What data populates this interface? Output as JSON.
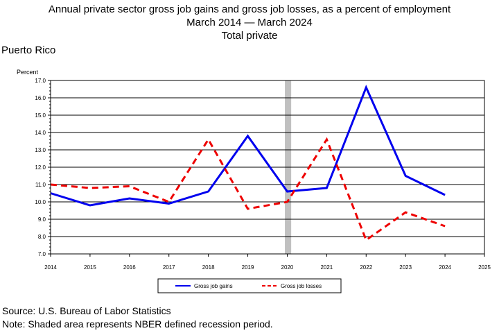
{
  "title": {
    "line1": "Annual private sector gross job gains and gross job losses, as a percent of employment",
    "line2": "March 2014 — March 2024",
    "line3": "Total private"
  },
  "region": "Puerto Rico",
  "footer": {
    "source": "Source: U.S. Bureau of Labor Statistics",
    "note": "Note: Shaded area represents NBER defined recession period."
  },
  "chart_data": {
    "type": "line",
    "ylabel": "Percent",
    "xlabel": "",
    "xlim": [
      2014,
      2025
    ],
    "ylim": [
      7.0,
      17.0
    ],
    "x_ticks": [
      "2014",
      "2015",
      "2016",
      "2017",
      "2018",
      "2019",
      "2020",
      "2021",
      "2022",
      "2023",
      "2024",
      "2025"
    ],
    "y_ticks": [
      "7.0",
      "8.0",
      "9.0",
      "10.0",
      "11.0",
      "12.0",
      "13.0",
      "14.0",
      "15.0",
      "16.0",
      "17.0"
    ],
    "grid": true,
    "legend_position": "bottom",
    "recession": {
      "start": 2019.94,
      "end": 2020.1,
      "color": "#c0c0c0"
    },
    "series": [
      {
        "name": "Gross job gains",
        "color": "#0000ee",
        "style": "solid",
        "x": [
          2014,
          2015,
          2016,
          2017,
          2018,
          2019,
          2020,
          2021,
          2022,
          2023,
          2024
        ],
        "values": [
          10.5,
          9.8,
          10.2,
          9.9,
          10.6,
          13.8,
          10.6,
          10.8,
          16.6,
          11.5,
          10.4
        ]
      },
      {
        "name": "Gross job losses",
        "color": "#ee0000",
        "style": "dashed",
        "x": [
          2014,
          2015,
          2016,
          2017,
          2018,
          2019,
          2020,
          2021,
          2022,
          2023,
          2024
        ],
        "values": [
          11.0,
          10.8,
          10.9,
          10.0,
          13.6,
          9.6,
          10.0,
          13.6,
          7.8,
          9.4,
          8.6
        ]
      }
    ]
  }
}
